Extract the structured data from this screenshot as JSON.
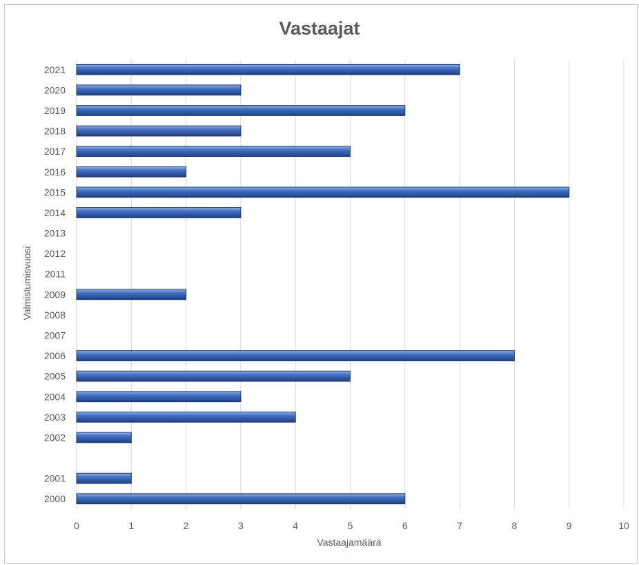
{
  "chart_data": {
    "type": "bar",
    "orientation": "horizontal",
    "title": "Vastaajat",
    "xlabel": "Vastaajamäärä",
    "ylabel": "Valmistumisvuosi",
    "xlim": [
      0,
      10
    ],
    "x_ticks": [
      "0",
      "1",
      "2",
      "3",
      "4",
      "5",
      "6",
      "7",
      "8",
      "9",
      "10"
    ],
    "grid": "vertical",
    "legend": "none",
    "categories": [
      "2000",
      "2001",
      "",
      "2002",
      "2003",
      "2004",
      "2005",
      "2006",
      "2007",
      "2008",
      "2009",
      "2011",
      "2012",
      "2013",
      "2014",
      "2015",
      "2016",
      "2017",
      "2018",
      "2019",
      "2020",
      "2021"
    ],
    "values": [
      6,
      1,
      0,
      1,
      4,
      3,
      5,
      8,
      0,
      0,
      2,
      0,
      0,
      0,
      3,
      9,
      2,
      5,
      3,
      6,
      3,
      7
    ],
    "bar_color": "#4472c4"
  }
}
